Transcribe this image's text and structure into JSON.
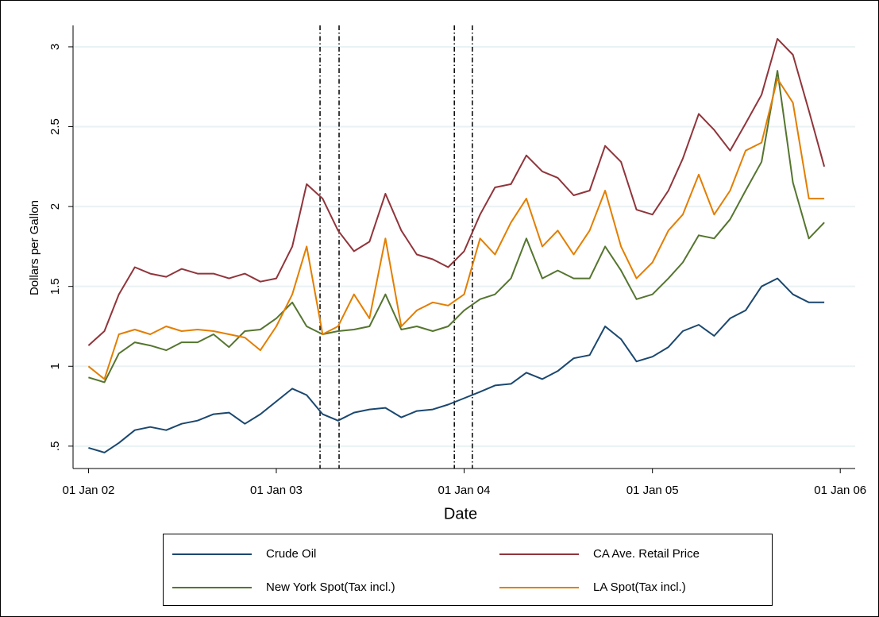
{
  "chart_data": {
    "type": "line",
    "y_label": "Dollars per Gallon",
    "x_label": "Date",
    "x": [
      "2002-01-01",
      "2002-02-01",
      "2002-03-01",
      "2002-04-01",
      "2002-05-01",
      "2002-06-01",
      "2002-07-01",
      "2002-08-01",
      "2002-09-01",
      "2002-10-01",
      "2002-11-01",
      "2002-12-01",
      "2003-01-01",
      "2003-02-01",
      "2003-03-01",
      "2003-04-01",
      "2003-05-01",
      "2003-06-01",
      "2003-07-01",
      "2003-08-01",
      "2003-09-01",
      "2003-10-01",
      "2003-11-01",
      "2003-12-01",
      "2004-01-01",
      "2004-02-01",
      "2004-03-01",
      "2004-04-01",
      "2004-05-01",
      "2004-06-01",
      "2004-07-01",
      "2004-08-01",
      "2004-09-01",
      "2004-10-01",
      "2004-11-01",
      "2004-12-01",
      "2005-01-01",
      "2005-02-01",
      "2005-03-01",
      "2005-04-01",
      "2005-05-01",
      "2005-06-01",
      "2005-07-01",
      "2005-08-01",
      "2005-09-01",
      "2005-10-01",
      "2005-11-01",
      "2005-12-01"
    ],
    "series": [
      {
        "name": "Crude Oil",
        "color": "#1a476f",
        "values": [
          0.49,
          0.46,
          0.52,
          0.6,
          0.62,
          0.6,
          0.64,
          0.66,
          0.7,
          0.71,
          0.64,
          0.7,
          0.78,
          0.86,
          0.82,
          0.7,
          0.66,
          0.71,
          0.73,
          0.74,
          0.68,
          0.72,
          0.73,
          0.76,
          0.8,
          0.84,
          0.88,
          0.89,
          0.96,
          0.92,
          0.97,
          1.05,
          1.07,
          1.25,
          1.17,
          1.03,
          1.06,
          1.12,
          1.22,
          1.26,
          1.19,
          1.3,
          1.35,
          1.5,
          1.55,
          1.45,
          1.4,
          1.4
        ]
      },
      {
        "name": "CA Ave. Retail Price",
        "color": "#90353b",
        "values": [
          1.13,
          1.22,
          1.45,
          1.62,
          1.58,
          1.56,
          1.61,
          1.58,
          1.58,
          1.55,
          1.58,
          1.53,
          1.55,
          1.75,
          2.14,
          2.05,
          1.85,
          1.72,
          1.78,
          2.08,
          1.85,
          1.7,
          1.67,
          1.62,
          1.72,
          1.95,
          2.12,
          2.14,
          2.32,
          2.22,
          2.18,
          2.07,
          2.1,
          2.38,
          2.28,
          1.98,
          1.95,
          2.1,
          2.3,
          2.58,
          2.48,
          2.35,
          2.52,
          2.7,
          3.05,
          2.95,
          2.6,
          2.25
        ]
      },
      {
        "name": "New York Spot(Tax incl.)",
        "color": "#55752f",
        "values": [
          0.93,
          0.9,
          1.08,
          1.15,
          1.13,
          1.1,
          1.15,
          1.15,
          1.2,
          1.12,
          1.22,
          1.23,
          1.3,
          1.4,
          1.25,
          1.2,
          1.22,
          1.23,
          1.25,
          1.45,
          1.23,
          1.25,
          1.22,
          1.25,
          1.35,
          1.42,
          1.45,
          1.55,
          1.8,
          1.55,
          1.6,
          1.55,
          1.55,
          1.75,
          1.6,
          1.42,
          1.45,
          1.55,
          1.65,
          1.82,
          1.8,
          1.92,
          2.1,
          2.28,
          2.85,
          2.15,
          1.8,
          1.9
        ]
      },
      {
        "name": "LA Spot(Tax incl.)",
        "color": "#e37e00",
        "values": [
          1.0,
          0.92,
          1.2,
          1.23,
          1.2,
          1.25,
          1.22,
          1.23,
          1.22,
          1.2,
          1.18,
          1.1,
          1.25,
          1.45,
          1.75,
          1.2,
          1.25,
          1.45,
          1.3,
          1.8,
          1.25,
          1.35,
          1.4,
          1.38,
          1.45,
          1.8,
          1.7,
          1.9,
          2.05,
          1.75,
          1.85,
          1.7,
          1.85,
          2.1,
          1.75,
          1.55,
          1.65,
          1.85,
          1.95,
          2.2,
          1.95,
          2.1,
          2.35,
          2.4,
          2.8,
          2.65,
          2.05,
          2.05
        ]
      }
    ],
    "xlim": [
      "2001-12-02",
      "2006-01-30"
    ],
    "xticks": [
      {
        "value": "2002-01-01",
        "label": "01 Jan 02"
      },
      {
        "value": "2003-01-01",
        "label": "01 Jan 03"
      },
      {
        "value": "2004-01-01",
        "label": "01 Jan 04"
      },
      {
        "value": "2005-01-01",
        "label": "01 Jan 05"
      },
      {
        "value": "2006-01-01",
        "label": "01 Jan 06"
      }
    ],
    "ylim": [
      0.36,
      3.134
    ],
    "yticks": [
      {
        "value": 0.5,
        "label": ".5"
      },
      1,
      1.5,
      2,
      2.5,
      3
    ],
    "vlines": [
      "2003-03-27",
      "2003-05-03",
      "2003-12-13",
      "2004-01-17"
    ],
    "grid": true,
    "legend": "bottom"
  }
}
